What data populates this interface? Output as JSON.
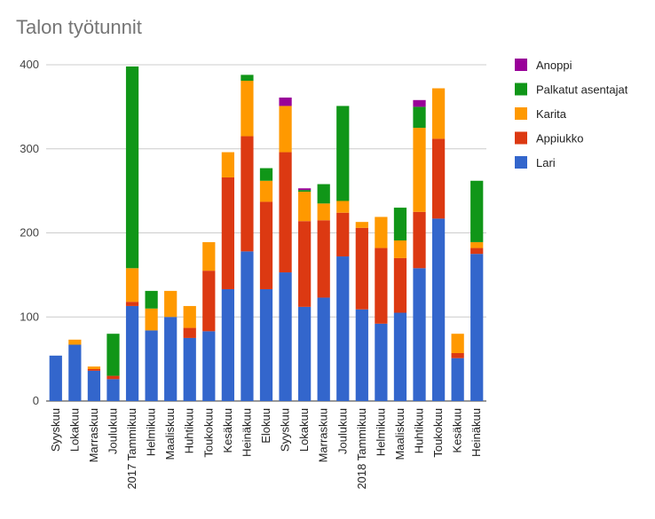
{
  "chart_data": {
    "type": "bar",
    "stacked": true,
    "title": "Talon työtunnit",
    "xlabel": "",
    "ylabel": "",
    "ylim": [
      0,
      400
    ],
    "yticks": [
      0,
      100,
      200,
      300,
      400
    ],
    "grid": true,
    "legend_position": "right",
    "categories": [
      "Syyskuu",
      "Lokakuu",
      "Marraskuu",
      "Joulukuu",
      "2017 Tammikuu",
      "Helmikuu",
      "Maaliskuu",
      "Huhtikuu",
      "Toukokuu",
      "Kesäkuu",
      "Heinäkuu",
      "Elokuu",
      "Syyskuu",
      "Lokakuu",
      "Marraskuu",
      "Joulukuu",
      "2018 Tammikuu",
      "Helmikuu",
      "Maaliskuu",
      "Huhtikuu",
      "Toukokuu",
      "Kesäkuu",
      "Heinäkuu"
    ],
    "series": [
      {
        "name": "Lari",
        "color": "#3366cc",
        "values": [
          54,
          67,
          36,
          26,
          113,
          84,
          100,
          75,
          83,
          133,
          178,
          133,
          153,
          112,
          123,
          172,
          109,
          92,
          105,
          158,
          217,
          51,
          175
        ]
      },
      {
        "name": "Appiukko",
        "color": "#dc3912",
        "values": [
          0,
          0,
          2,
          4,
          5,
          0,
          0,
          12,
          72,
          133,
          137,
          104,
          143,
          102,
          92,
          52,
          97,
          90,
          65,
          67,
          95,
          6,
          7
        ]
      },
      {
        "name": "Karita",
        "color": "#ff9900",
        "values": [
          0,
          6,
          3,
          0,
          40,
          26,
          31,
          26,
          34,
          30,
          66,
          25,
          55,
          35,
          20,
          14,
          7,
          37,
          21,
          100,
          60,
          23,
          7
        ]
      },
      {
        "name": "Palkatut asentajat",
        "color": "#109618",
        "values": [
          0,
          0,
          0,
          50,
          240,
          21,
          0,
          0,
          0,
          0,
          7,
          15,
          0,
          2,
          23,
          113,
          0,
          0,
          39,
          25,
          0,
          0,
          73
        ]
      },
      {
        "name": "Anoppi",
        "color": "#990099",
        "values": [
          0,
          0,
          0,
          0,
          0,
          0,
          0,
          0,
          0,
          0,
          0,
          0,
          10,
          2,
          0,
          0,
          0,
          0,
          0,
          8,
          0,
          0,
          0
        ]
      }
    ],
    "legend_order": [
      "Anoppi",
      "Palkatut asentajat",
      "Karita",
      "Appiukko",
      "Lari"
    ]
  }
}
